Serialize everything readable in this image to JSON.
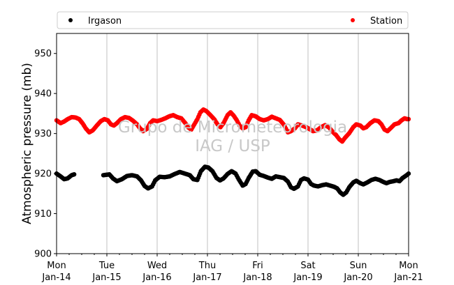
{
  "chart_data": {
    "type": "scatter",
    "ylabel": "Atmospheric pressure (mb)",
    "ylim": [
      900,
      955
    ],
    "yticks": [
      900,
      910,
      920,
      930,
      940,
      950
    ],
    "x_range_days": [
      14,
      21
    ],
    "xticks": [
      {
        "day": 14,
        "weekday": "Mon",
        "date": "Jan-14"
      },
      {
        "day": 15,
        "weekday": "Tue",
        "date": "Jan-15"
      },
      {
        "day": 16,
        "weekday": "Wed",
        "date": "Jan-16"
      },
      {
        "day": 17,
        "weekday": "Thu",
        "date": "Jan-17"
      },
      {
        "day": 18,
        "weekday": "Fri",
        "date": "Jan-18"
      },
      {
        "day": 19,
        "weekday": "Sat",
        "date": "Jan-19"
      },
      {
        "day": 20,
        "weekday": "Sun",
        "date": "Jan-20"
      },
      {
        "day": 21,
        "weekday": "Mon",
        "date": "Jan-21"
      }
    ],
    "grid": "vertical",
    "legend_placement": "top",
    "watermark": [
      "Grupo de Micrometeorologia",
      "IAG / USP"
    ],
    "series": [
      {
        "name": "Irgason",
        "color": "#000000",
        "gaps": [
          [
            14.35,
            14.93
          ]
        ],
        "points": [
          [
            14.0,
            920.0
          ],
          [
            14.08,
            919.3
          ],
          [
            14.15,
            918.6
          ],
          [
            14.22,
            918.8
          ],
          [
            14.3,
            919.6
          ],
          [
            14.35,
            919.8
          ],
          [
            14.93,
            919.6
          ],
          [
            15.05,
            919.8
          ],
          [
            15.12,
            918.8
          ],
          [
            15.2,
            918.1
          ],
          [
            15.3,
            918.6
          ],
          [
            15.4,
            919.4
          ],
          [
            15.5,
            919.6
          ],
          [
            15.6,
            919.3
          ],
          [
            15.68,
            918.3
          ],
          [
            15.75,
            916.9
          ],
          [
            15.82,
            916.3
          ],
          [
            15.9,
            916.8
          ],
          [
            15.96,
            918.3
          ],
          [
            16.05,
            919.2
          ],
          [
            16.15,
            919.1
          ],
          [
            16.25,
            919.3
          ],
          [
            16.35,
            919.9
          ],
          [
            16.45,
            920.4
          ],
          [
            16.55,
            920.0
          ],
          [
            16.65,
            919.6
          ],
          [
            16.72,
            918.6
          ],
          [
            16.8,
            918.4
          ],
          [
            16.87,
            920.6
          ],
          [
            16.95,
            921.7
          ],
          [
            17.02,
            921.5
          ],
          [
            17.1,
            920.6
          ],
          [
            17.18,
            918.9
          ],
          [
            17.25,
            918.3
          ],
          [
            17.32,
            918.8
          ],
          [
            17.4,
            919.9
          ],
          [
            17.48,
            920.6
          ],
          [
            17.56,
            920.0
          ],
          [
            17.62,
            918.6
          ],
          [
            17.7,
            917.0
          ],
          [
            17.76,
            917.4
          ],
          [
            17.82,
            918.9
          ],
          [
            17.9,
            920.5
          ],
          [
            17.96,
            920.6
          ],
          [
            18.04,
            919.7
          ],
          [
            18.12,
            919.4
          ],
          [
            18.2,
            919.0
          ],
          [
            18.28,
            918.7
          ],
          [
            18.36,
            919.3
          ],
          [
            18.44,
            919.1
          ],
          [
            18.52,
            918.9
          ],
          [
            18.6,
            918.0
          ],
          [
            18.66,
            916.6
          ],
          [
            18.72,
            916.2
          ],
          [
            18.8,
            916.8
          ],
          [
            18.86,
            918.4
          ],
          [
            18.92,
            918.8
          ],
          [
            19.0,
            918.5
          ],
          [
            19.06,
            917.4
          ],
          [
            19.12,
            917.0
          ],
          [
            19.2,
            916.8
          ],
          [
            19.28,
            917.1
          ],
          [
            19.36,
            917.3
          ],
          [
            19.44,
            917.0
          ],
          [
            19.52,
            916.7
          ],
          [
            19.58,
            916.3
          ],
          [
            19.64,
            915.3
          ],
          [
            19.7,
            914.7
          ],
          [
            19.76,
            915.3
          ],
          [
            19.82,
            916.6
          ],
          [
            19.9,
            917.8
          ],
          [
            19.96,
            918.2
          ],
          [
            20.04,
            917.6
          ],
          [
            20.1,
            917.3
          ],
          [
            20.18,
            917.8
          ],
          [
            20.26,
            918.4
          ],
          [
            20.34,
            918.7
          ],
          [
            20.42,
            918.4
          ],
          [
            20.5,
            917.9
          ],
          [
            20.56,
            917.6
          ],
          [
            20.62,
            917.9
          ],
          [
            20.7,
            918.1
          ],
          [
            20.76,
            918.3
          ],
          [
            20.82,
            918.1
          ],
          [
            20.88,
            918.9
          ],
          [
            20.94,
            919.4
          ],
          [
            21.0,
            920.0
          ]
        ]
      },
      {
        "name": "Station",
        "color": "#ff0000",
        "gaps": [],
        "points": [
          [
            14.0,
            933.3
          ],
          [
            14.08,
            932.6
          ],
          [
            14.15,
            933.0
          ],
          [
            14.22,
            933.6
          ],
          [
            14.3,
            934.1
          ],
          [
            14.38,
            934.0
          ],
          [
            14.45,
            933.6
          ],
          [
            14.52,
            932.5
          ],
          [
            14.58,
            931.3
          ],
          [
            14.65,
            930.3
          ],
          [
            14.72,
            930.8
          ],
          [
            14.8,
            932.0
          ],
          [
            14.88,
            933.1
          ],
          [
            14.95,
            933.6
          ],
          [
            15.02,
            933.3
          ],
          [
            15.08,
            932.3
          ],
          [
            15.14,
            932.0
          ],
          [
            15.2,
            932.6
          ],
          [
            15.28,
            933.6
          ],
          [
            15.36,
            934.1
          ],
          [
            15.44,
            933.9
          ],
          [
            15.52,
            933.2
          ],
          [
            15.6,
            932.3
          ],
          [
            15.66,
            931.3
          ],
          [
            15.72,
            930.6
          ],
          [
            15.8,
            931.2
          ],
          [
            15.86,
            932.6
          ],
          [
            15.92,
            933.3
          ],
          [
            16.0,
            933.1
          ],
          [
            16.08,
            933.4
          ],
          [
            16.16,
            933.8
          ],
          [
            16.24,
            934.3
          ],
          [
            16.32,
            934.6
          ],
          [
            16.4,
            934.1
          ],
          [
            16.48,
            933.8
          ],
          [
            16.56,
            932.6
          ],
          [
            16.62,
            931.5
          ],
          [
            16.68,
            931.0
          ],
          [
            16.74,
            932.3
          ],
          [
            16.8,
            933.6
          ],
          [
            16.86,
            935.3
          ],
          [
            16.92,
            936.0
          ],
          [
            16.98,
            935.6
          ],
          [
            17.06,
            934.6
          ],
          [
            17.14,
            933.5
          ],
          [
            17.2,
            932.3
          ],
          [
            17.26,
            931.6
          ],
          [
            17.32,
            932.6
          ],
          [
            17.4,
            934.6
          ],
          [
            17.46,
            935.3
          ],
          [
            17.52,
            934.5
          ],
          [
            17.58,
            933.4
          ],
          [
            17.64,
            932.0
          ],
          [
            17.7,
            931.3
          ],
          [
            17.76,
            931.6
          ],
          [
            17.82,
            933.3
          ],
          [
            17.88,
            934.6
          ],
          [
            17.96,
            934.3
          ],
          [
            18.04,
            933.6
          ],
          [
            18.12,
            933.3
          ],
          [
            18.2,
            933.6
          ],
          [
            18.28,
            934.2
          ],
          [
            18.36,
            933.8
          ],
          [
            18.44,
            933.4
          ],
          [
            18.52,
            932.2
          ],
          [
            18.6,
            930.3
          ],
          [
            18.66,
            930.6
          ],
          [
            18.74,
            931.3
          ],
          [
            18.8,
            932.3
          ],
          [
            18.88,
            932.0
          ],
          [
            18.96,
            931.6
          ],
          [
            19.02,
            931.2
          ],
          [
            19.1,
            930.6
          ],
          [
            19.18,
            930.8
          ],
          [
            19.26,
            931.6
          ],
          [
            19.34,
            932.1
          ],
          [
            19.42,
            931.5
          ],
          [
            19.5,
            930.3
          ],
          [
            19.56,
            929.6
          ],
          [
            19.62,
            928.6
          ],
          [
            19.68,
            928.0
          ],
          [
            19.74,
            929.0
          ],
          [
            19.82,
            930.1
          ],
          [
            19.9,
            931.6
          ],
          [
            19.96,
            932.3
          ],
          [
            20.04,
            932.0
          ],
          [
            20.1,
            931.3
          ],
          [
            20.16,
            931.6
          ],
          [
            20.24,
            932.6
          ],
          [
            20.32,
            933.3
          ],
          [
            20.4,
            933.1
          ],
          [
            20.46,
            932.3
          ],
          [
            20.52,
            931.0
          ],
          [
            20.58,
            930.6
          ],
          [
            20.64,
            931.3
          ],
          [
            20.72,
            932.3
          ],
          [
            20.8,
            932.6
          ],
          [
            20.86,
            933.3
          ],
          [
            20.92,
            933.8
          ],
          [
            20.97,
            933.6
          ],
          [
            21.0,
            933.6
          ]
        ]
      }
    ]
  }
}
